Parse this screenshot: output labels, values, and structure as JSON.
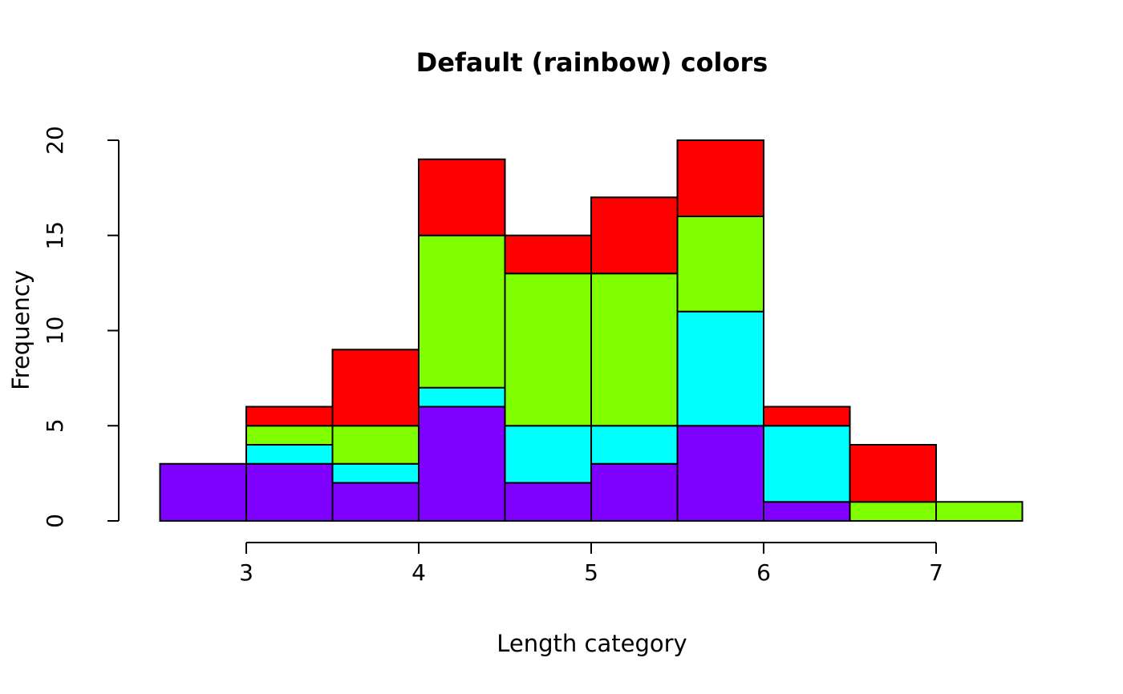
{
  "chart_data": {
    "type": "bar",
    "variant": "stacked-histogram",
    "title": "Default (rainbow) colors",
    "xlabel": "Length category",
    "ylabel": "Frequency",
    "xlim": [
      2.5,
      7.5
    ],
    "ylim": [
      0,
      20
    ],
    "x_ticks": [
      3,
      4,
      5,
      6,
      7
    ],
    "y_ticks": [
      0,
      5,
      10,
      15,
      20
    ],
    "bin_width": 0.5,
    "bin_starts": [
      2.5,
      3.0,
      3.5,
      4.0,
      4.5,
      5.0,
      5.5,
      6.0,
      6.5,
      7.0
    ],
    "series": [
      {
        "name": "purple",
        "color": "#8000FF",
        "values": [
          3,
          3,
          2,
          6,
          2,
          3,
          5,
          1,
          0,
          0
        ]
      },
      {
        "name": "cyan",
        "color": "#00FFFF",
        "values": [
          0,
          1,
          1,
          1,
          3,
          2,
          6,
          4,
          0,
          0
        ]
      },
      {
        "name": "green",
        "color": "#80FF00",
        "values": [
          0,
          1,
          2,
          8,
          8,
          8,
          5,
          0,
          1,
          1
        ]
      },
      {
        "name": "red",
        "color": "#FF0000",
        "values": [
          0,
          1,
          4,
          4,
          2,
          4,
          4,
          1,
          3,
          0
        ]
      }
    ],
    "totals": [
      3,
      6,
      9,
      19,
      15,
      17,
      20,
      6,
      4,
      1
    ],
    "bar_border_color": "#000000",
    "axis_color": "#000000",
    "background": "#FFFFFF",
    "grid": false,
    "legend": "none"
  }
}
